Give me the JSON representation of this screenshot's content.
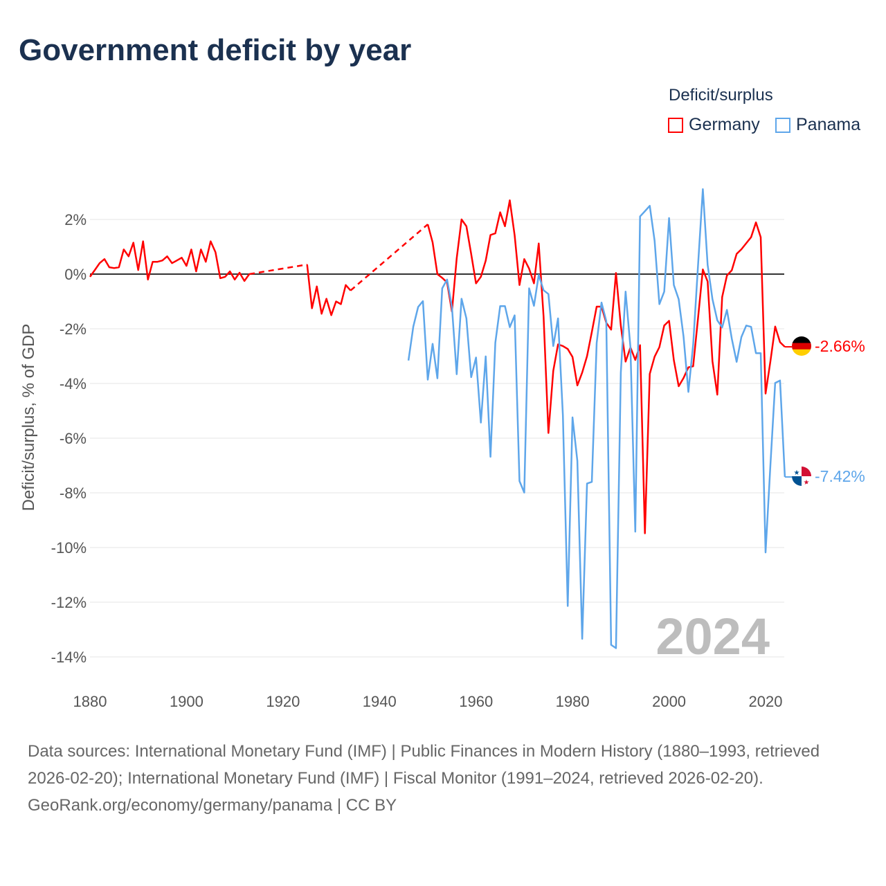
{
  "title": "Government deficit by year",
  "legend": {
    "title": "Deficit/surplus",
    "items": [
      {
        "label": "Germany",
        "color": "#ff0000"
      },
      {
        "label": "Panama",
        "color": "#5ea6ea"
      }
    ]
  },
  "chart_data": {
    "type": "line",
    "title": "Government deficit by year",
    "ylabel": "Deficit/surplus, % of GDP",
    "xlabel": "",
    "xlim": [
      1880,
      2024
    ],
    "ylim": [
      -14,
      2
    ],
    "y_ticks": [
      2,
      0,
      -2,
      -4,
      -6,
      -8,
      -10,
      -12,
      -14
    ],
    "y_tick_labels": [
      "2%",
      "0%",
      "-2%",
      "-4%",
      "-6%",
      "-8%",
      "-10%",
      "-12%",
      "-14%"
    ],
    "x_ticks": [
      1880,
      1900,
      1920,
      1940,
      1960,
      1980,
      2000,
      2020
    ],
    "x_tick_labels": [
      "1880",
      "1900",
      "1920",
      "1940",
      "1960",
      "1980",
      "2000",
      "2020"
    ],
    "grid": true,
    "legend_position": "top-right",
    "current_year_label": "2024",
    "series": [
      {
        "name": "Germany",
        "color": "#ff0000",
        "end_label": "-2.66%",
        "segments": [
          {
            "start": 1880,
            "values": [
              -0.1,
              0.15,
              0.4,
              0.55,
              0.25,
              0.22,
              0.25,
              0.9,
              0.65,
              1.15,
              0.15,
              1.2,
              -0.2,
              0.45,
              0.45,
              0.5,
              0.65,
              0.4,
              0.5,
              0.6,
              0.3,
              0.9,
              0.1,
              0.9,
              0.45,
              1.2,
              0.8,
              -0.15,
              -0.1,
              0.1,
              -0.2,
              0.05,
              -0.25,
              0.0
            ]
          },
          {
            "start": 1925,
            "values": [
              0.35,
              -1.25,
              -0.45,
              -1.45,
              -0.9,
              -1.5,
              -1.0,
              -1.1,
              -0.4,
              -0.6
            ]
          },
          {
            "start": 1950,
            "values": [
              1.82,
              1.16,
              0.0,
              -0.14,
              -0.3,
              -1.37,
              0.58,
              2.0,
              1.75,
              0.74,
              -0.34,
              -0.1,
              0.49,
              1.43,
              1.49,
              2.26,
              1.75,
              2.7,
              1.42,
              -0.4,
              0.55,
              0.2,
              -0.34,
              1.12,
              -1.55,
              -5.81,
              -3.54,
              -2.57,
              -2.63,
              -2.74,
              -3.03,
              -4.07,
              -3.6,
              -3.0,
              -2.12,
              -1.19,
              -1.19,
              -1.78,
              -2.03,
              0.04,
              -1.89,
              -3.2,
              -2.68,
              -3.14,
              -2.6,
              -9.48,
              -3.65,
              -3.02,
              -2.67,
              -1.88,
              -1.71,
              -3.15,
              -4.1,
              -3.8,
              -3.41,
              -3.37,
              -1.62,
              0.17,
              -0.27,
              -3.19,
              -4.41,
              -0.84,
              -0.05,
              0.14,
              0.74,
              0.91,
              1.13,
              1.35,
              1.89,
              1.35,
              -4.37,
              -3.19,
              -1.92,
              -2.49,
              -2.66
            ]
          }
        ]
      },
      {
        "name": "Panama",
        "color": "#5ea6ea",
        "end_label": "-7.42%",
        "segments": [
          {
            "start": 1946,
            "values": [
              -3.16,
              -1.92,
              -1.2,
              -0.99,
              -3.86,
              -2.55,
              -3.81,
              -0.52,
              -0.2,
              -1.2,
              -3.66,
              -0.9,
              -1.62,
              -3.77,
              -3.05,
              -5.43,
              -3.01,
              -6.68,
              -2.51,
              -1.17,
              -1.17,
              -1.94,
              -1.51,
              -7.57,
              -7.99,
              -0.52,
              -1.16,
              -0.03,
              -0.59,
              -0.73,
              -2.63,
              -1.62,
              -5.16,
              -12.14,
              -5.24,
              -6.83,
              -13.34,
              -7.66,
              -7.6,
              -2.52,
              -1.04,
              -1.72,
              -13.56,
              -13.68,
              -3.6,
              -0.64,
              -2.68,
              -9.42,
              2.11,
              2.3,
              2.5,
              1.22,
              -1.1,
              -0.64,
              2.05,
              -0.4,
              -0.92,
              -2.28,
              -4.31,
              -2.58,
              0.3,
              3.11,
              0.34,
              -0.92,
              -1.69,
              -1.95,
              -1.31,
              -2.36,
              -3.21,
              -2.3,
              -1.88,
              -1.93,
              -2.89,
              -2.89,
              -10.18,
              -6.99,
              -3.98,
              -3.89,
              -7.42
            ]
          }
        ]
      }
    ]
  },
  "footer": {
    "sources": "Data sources: International Monetary Fund (IMF) | Public Finances in Modern History (1880–1993, retrieved 2026-02-20); International Monetary Fund (IMF) | Fiscal Monitor (1991–2024, retrieved 2026-02-20).",
    "credit": "GeoRank.org/economy/germany/panama | CC BY"
  }
}
